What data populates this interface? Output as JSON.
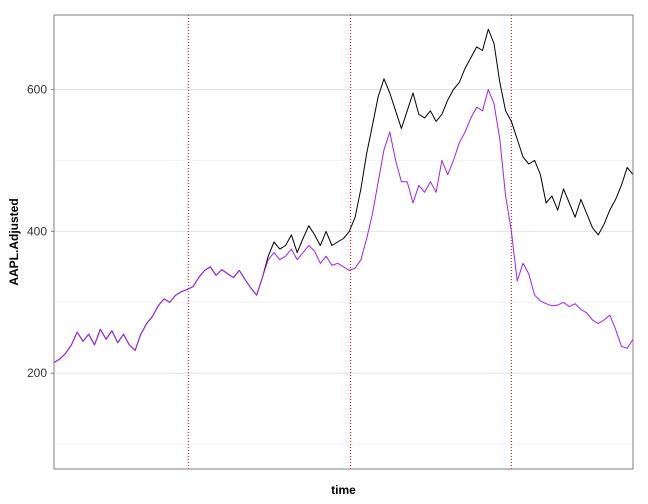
{
  "chart_data": {
    "type": "line",
    "title": "",
    "xlabel": "time",
    "ylabel": "AAPL.Adjusted",
    "xlim": [
      0,
      100
    ],
    "ylim": [
      65,
      705
    ],
    "y_ticks": [
      200,
      400,
      600
    ],
    "y_minor": [
      100,
      300,
      500
    ],
    "grid": true,
    "vlines": {
      "color": "#ff0000",
      "style": "dotted",
      "x": [
        23.2,
        51.2,
        79.0
      ]
    },
    "series": [
      {
        "color": "#000000",
        "points": [
          [
            0,
            215
          ],
          [
            1,
            220
          ],
          [
            2,
            228
          ],
          [
            3,
            240
          ],
          [
            4,
            258
          ],
          [
            5,
            245
          ],
          [
            6,
            255
          ],
          [
            7,
            240
          ],
          [
            8,
            262
          ],
          [
            9,
            248
          ],
          [
            10,
            260
          ],
          [
            11,
            243
          ],
          [
            12,
            255
          ],
          [
            13,
            240
          ],
          [
            14,
            232
          ],
          [
            15,
            255
          ],
          [
            16,
            270
          ],
          [
            17,
            280
          ],
          [
            18,
            295
          ],
          [
            19,
            305
          ],
          [
            20,
            300
          ],
          [
            21,
            310
          ],
          [
            22,
            315
          ],
          [
            23,
            318
          ],
          [
            24,
            322
          ],
          [
            25,
            335
          ],
          [
            26,
            345
          ],
          [
            27,
            350
          ],
          [
            28,
            338
          ],
          [
            29,
            346
          ],
          [
            30,
            340
          ],
          [
            31,
            335
          ],
          [
            32,
            345
          ],
          [
            33,
            332
          ],
          [
            34,
            320
          ],
          [
            35,
            310
          ],
          [
            36,
            335
          ],
          [
            37,
            365
          ],
          [
            38,
            385
          ],
          [
            39,
            375
          ],
          [
            40,
            380
          ],
          [
            41,
            395
          ],
          [
            42,
            370
          ],
          [
            43,
            390
          ],
          [
            44,
            408
          ],
          [
            45,
            395
          ],
          [
            46,
            380
          ],
          [
            47,
            400
          ],
          [
            48,
            380
          ],
          [
            49,
            385
          ],
          [
            50,
            390
          ],
          [
            51,
            400
          ],
          [
            52,
            420
          ],
          [
            53,
            460
          ],
          [
            54,
            510
          ],
          [
            55,
            550
          ],
          [
            56,
            590
          ],
          [
            57,
            615
          ],
          [
            58,
            595
          ],
          [
            59,
            570
          ],
          [
            60,
            545
          ],
          [
            61,
            570
          ],
          [
            62,
            595
          ],
          [
            63,
            565
          ],
          [
            64,
            560
          ],
          [
            65,
            570
          ],
          [
            66,
            555
          ],
          [
            67,
            565
          ],
          [
            68,
            585
          ],
          [
            69,
            600
          ],
          [
            70,
            610
          ],
          [
            71,
            630
          ],
          [
            72,
            645
          ],
          [
            73,
            660
          ],
          [
            74,
            655
          ],
          [
            75,
            685
          ],
          [
            76,
            665
          ],
          [
            77,
            610
          ],
          [
            78,
            570
          ],
          [
            79,
            555
          ],
          [
            80,
            530
          ],
          [
            81,
            505
          ],
          [
            82,
            495
          ],
          [
            83,
            500
          ],
          [
            84,
            480
          ],
          [
            85,
            440
          ],
          [
            86,
            450
          ],
          [
            87,
            430
          ],
          [
            88,
            460
          ],
          [
            89,
            440
          ],
          [
            90,
            420
          ],
          [
            91,
            445
          ],
          [
            92,
            425
          ],
          [
            93,
            405
          ],
          [
            94,
            395
          ],
          [
            95,
            410
          ],
          [
            96,
            430
          ],
          [
            97,
            445
          ],
          [
            98,
            465
          ],
          [
            99,
            490
          ],
          [
            100,
            480
          ]
        ]
      },
      {
        "color": "#a020f0",
        "points": [
          [
            0,
            215
          ],
          [
            1,
            220
          ],
          [
            2,
            228
          ],
          [
            3,
            240
          ],
          [
            4,
            258
          ],
          [
            5,
            245
          ],
          [
            6,
            255
          ],
          [
            7,
            240
          ],
          [
            8,
            262
          ],
          [
            9,
            248
          ],
          [
            10,
            260
          ],
          [
            11,
            243
          ],
          [
            12,
            255
          ],
          [
            13,
            240
          ],
          [
            14,
            232
          ],
          [
            15,
            255
          ],
          [
            16,
            270
          ],
          [
            17,
            280
          ],
          [
            18,
            295
          ],
          [
            19,
            305
          ],
          [
            20,
            300
          ],
          [
            21,
            310
          ],
          [
            22,
            315
          ],
          [
            23,
            318
          ],
          [
            24,
            322
          ],
          [
            25,
            335
          ],
          [
            26,
            345
          ],
          [
            27,
            350
          ],
          [
            28,
            338
          ],
          [
            29,
            346
          ],
          [
            30,
            340
          ],
          [
            31,
            335
          ],
          [
            32,
            345
          ],
          [
            33,
            332
          ],
          [
            34,
            320
          ],
          [
            35,
            310
          ],
          [
            36,
            335
          ],
          [
            37,
            360
          ],
          [
            38,
            370
          ],
          [
            39,
            360
          ],
          [
            40,
            365
          ],
          [
            41,
            375
          ],
          [
            42,
            360
          ],
          [
            43,
            370
          ],
          [
            44,
            380
          ],
          [
            45,
            372
          ],
          [
            46,
            355
          ],
          [
            47,
            365
          ],
          [
            48,
            352
          ],
          [
            49,
            355
          ],
          [
            50,
            350
          ],
          [
            51,
            345
          ],
          [
            52,
            348
          ],
          [
            53,
            360
          ],
          [
            54,
            390
          ],
          [
            55,
            425
          ],
          [
            56,
            470
          ],
          [
            57,
            515
          ],
          [
            58,
            540
          ],
          [
            59,
            500
          ],
          [
            60,
            470
          ],
          [
            61,
            470
          ],
          [
            62,
            440
          ],
          [
            63,
            465
          ],
          [
            64,
            455
          ],
          [
            65,
            470
          ],
          [
            66,
            455
          ],
          [
            67,
            500
          ],
          [
            68,
            480
          ],
          [
            69,
            500
          ],
          [
            70,
            525
          ],
          [
            71,
            540
          ],
          [
            72,
            560
          ],
          [
            73,
            575
          ],
          [
            74,
            570
          ],
          [
            75,
            600
          ],
          [
            76,
            580
          ],
          [
            77,
            530
          ],
          [
            78,
            450
          ],
          [
            79,
            400
          ],
          [
            80,
            330
          ],
          [
            81,
            355
          ],
          [
            82,
            340
          ],
          [
            83,
            310
          ],
          [
            84,
            302
          ],
          [
            85,
            298
          ],
          [
            86,
            295
          ],
          [
            87,
            296
          ],
          [
            88,
            300
          ],
          [
            89,
            294
          ],
          [
            90,
            298
          ],
          [
            91,
            290
          ],
          [
            92,
            285
          ],
          [
            93,
            275
          ],
          [
            94,
            270
          ],
          [
            95,
            275
          ],
          [
            96,
            282
          ],
          [
            97,
            262
          ],
          [
            98,
            238
          ],
          [
            99,
            235
          ],
          [
            100,
            248
          ]
        ]
      }
    ]
  }
}
